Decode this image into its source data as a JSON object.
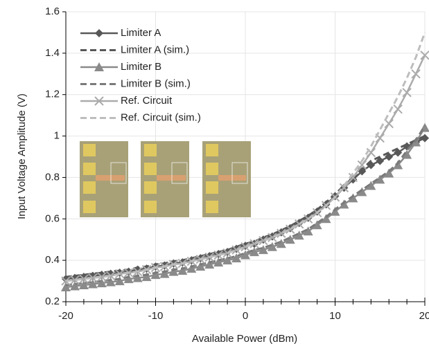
{
  "chart_data": {
    "type": "line",
    "xlabel": "Available Power (dBm)",
    "ylabel": "Input Voltage Amplitude (V)",
    "x": [
      -20,
      -19,
      -18,
      -17,
      -16,
      -15,
      -14,
      -13,
      -12,
      -11,
      -10,
      -9,
      -8,
      -7,
      -6,
      -5,
      -4,
      -3,
      -2,
      -1,
      0,
      1,
      2,
      3,
      4,
      5,
      6,
      7,
      8,
      9,
      10,
      11,
      12,
      13,
      14,
      15,
      16,
      17,
      18,
      19,
      20
    ],
    "xlim": [
      -20,
      20
    ],
    "xticks": [
      -20,
      -10,
      0,
      10,
      20
    ],
    "ylim": [
      0.2,
      1.6
    ],
    "yticks": [
      0.2,
      0.4,
      0.6,
      0.8,
      1,
      1.2,
      1.4,
      1.6
    ],
    "grid": true,
    "legend": "upper left",
    "series": [
      {
        "name": "Limiter A",
        "color": "#585858",
        "dash": false,
        "marker": "diamond",
        "values": [
          0.31,
          0.315,
          0.32,
          0.325,
          0.33,
          0.335,
          0.34,
          0.345,
          0.355,
          0.36,
          0.37,
          0.375,
          0.385,
          0.39,
          0.4,
          0.41,
          0.42,
          0.43,
          0.44,
          0.455,
          0.47,
          0.48,
          0.5,
          0.515,
          0.535,
          0.555,
          0.58,
          0.605,
          0.635,
          0.67,
          0.71,
          0.75,
          0.79,
          0.83,
          0.86,
          0.88,
          0.9,
          0.92,
          0.95,
          0.97,
          0.99
        ]
      },
      {
        "name": "Limiter A (sim.)",
        "color": "#585858",
        "dash": true,
        "marker": "none",
        "values": [
          0.32,
          0.325,
          0.33,
          0.335,
          0.34,
          0.345,
          0.35,
          0.355,
          0.365,
          0.37,
          0.38,
          0.385,
          0.395,
          0.4,
          0.41,
          0.42,
          0.43,
          0.44,
          0.45,
          0.465,
          0.48,
          0.49,
          0.51,
          0.525,
          0.545,
          0.565,
          0.59,
          0.615,
          0.645,
          0.68,
          0.72,
          0.76,
          0.8,
          0.84,
          0.88,
          0.9,
          0.92,
          0.94,
          0.96,
          0.98,
          1.0
        ]
      },
      {
        "name": "Limiter B",
        "color": "#8a8a8a",
        "dash": false,
        "marker": "triangle",
        "values": [
          0.27,
          0.275,
          0.28,
          0.285,
          0.29,
          0.295,
          0.3,
          0.31,
          0.315,
          0.32,
          0.33,
          0.335,
          0.345,
          0.35,
          0.36,
          0.37,
          0.38,
          0.39,
          0.4,
          0.41,
          0.425,
          0.44,
          0.45,
          0.465,
          0.48,
          0.5,
          0.52,
          0.54,
          0.57,
          0.6,
          0.635,
          0.67,
          0.7,
          0.73,
          0.76,
          0.79,
          0.82,
          0.86,
          0.91,
          0.97,
          1.04
        ]
      },
      {
        "name": "Limiter B (sim.)",
        "color": "#7a7a7a",
        "dash": true,
        "marker": "none",
        "values": [
          0.28,
          0.285,
          0.29,
          0.295,
          0.3,
          0.305,
          0.31,
          0.32,
          0.325,
          0.33,
          0.34,
          0.345,
          0.355,
          0.36,
          0.37,
          0.38,
          0.39,
          0.4,
          0.41,
          0.42,
          0.435,
          0.45,
          0.46,
          0.475,
          0.49,
          0.51,
          0.53,
          0.55,
          0.58,
          0.61,
          0.645,
          0.68,
          0.71,
          0.74,
          0.77,
          0.8,
          0.83,
          0.87,
          0.93,
          0.98,
          1.05
        ]
      },
      {
        "name": "Ref. Circuit",
        "color": "#ababab",
        "dash": false,
        "marker": "x",
        "values": [
          0.3,
          0.305,
          0.31,
          0.315,
          0.32,
          0.325,
          0.335,
          0.34,
          0.345,
          0.355,
          0.365,
          0.37,
          0.38,
          0.385,
          0.395,
          0.405,
          0.415,
          0.425,
          0.435,
          0.45,
          0.465,
          0.48,
          0.495,
          0.51,
          0.53,
          0.55,
          0.575,
          0.6,
          0.63,
          0.665,
          0.705,
          0.75,
          0.8,
          0.86,
          0.92,
          0.99,
          1.06,
          1.13,
          1.21,
          1.3,
          1.39
        ]
      },
      {
        "name": "Ref. Circuit (sim.)",
        "color": "#bdbdbd",
        "dash": true,
        "marker": "none",
        "values": [
          0.3,
          0.305,
          0.31,
          0.315,
          0.32,
          0.325,
          0.335,
          0.34,
          0.345,
          0.355,
          0.365,
          0.37,
          0.38,
          0.385,
          0.395,
          0.405,
          0.415,
          0.425,
          0.435,
          0.45,
          0.465,
          0.48,
          0.495,
          0.51,
          0.53,
          0.55,
          0.575,
          0.6,
          0.63,
          0.665,
          0.705,
          0.76,
          0.82,
          0.88,
          0.95,
          1.03,
          1.11,
          1.19,
          1.28,
          1.38,
          1.5
        ]
      }
    ]
  }
}
